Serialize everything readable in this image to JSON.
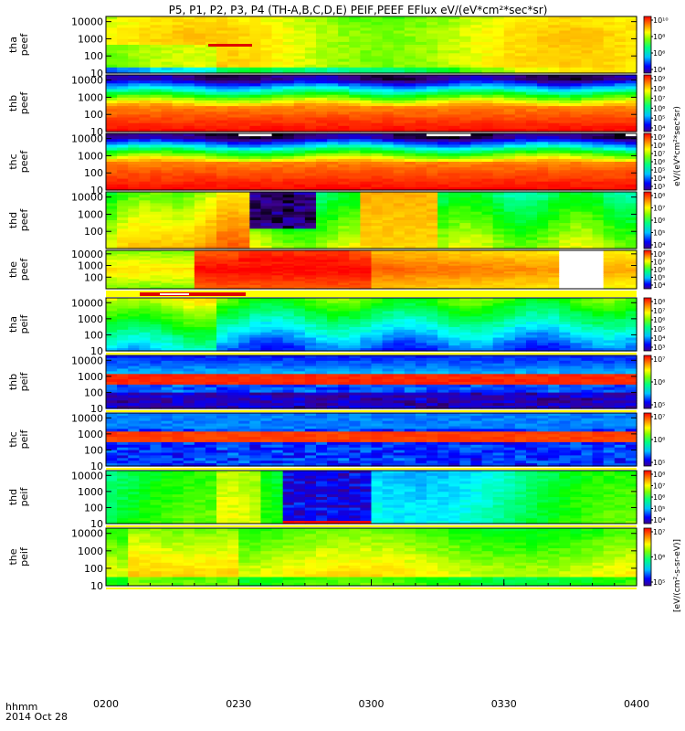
{
  "chart_data": {
    "type": "heatmap",
    "title": "P5, P1, P2, P3, P4 (TH-A,B,C,D,E) PEIF,PEEF EFlux eV/(eV*cm²*sec*sr)",
    "x_label_left": "hhmm",
    "date": "2014 Oct 28",
    "x_ticks": [
      "0200",
      "0230",
      "0300",
      "0330",
      "0400"
    ],
    "x_range": [
      "02:00",
      "04:00"
    ],
    "color_scale": "log, rainbow (purple-blue-green-yellow-red)",
    "colorbar_unit": "eV/(eV*cm²*sec*sr)",
    "colorbar_bottom_label": "[eV/(cm²-s-sr-eV)]",
    "panels": [
      {
        "label": [
          "tha",
          "peef"
        ],
        "y_ticks": [
          "10000",
          "1000",
          "100",
          "10"
        ],
        "ylim": [
          10,
          20000
        ],
        "cbar_ticks": [
          "10¹⁰",
          "10⁸",
          "10⁶",
          "10⁴"
        ]
      },
      {
        "label": [
          "thb",
          "peef"
        ],
        "y_ticks": [
          "10000",
          "1000",
          "100",
          "10"
        ],
        "ylim": [
          10,
          20000
        ],
        "cbar_ticks": [
          "10⁹",
          "10⁸",
          "10⁷",
          "10⁶",
          "10⁵",
          "10⁴"
        ]
      },
      {
        "label": [
          "thc",
          "peef"
        ],
        "y_ticks": [
          "10000",
          "1000",
          "100",
          "10"
        ],
        "ylim": [
          10,
          20000
        ],
        "cbar_ticks": [
          "10⁹",
          "10⁸",
          "10⁷",
          "10⁶",
          "10⁵",
          "10⁴",
          "10³"
        ]
      },
      {
        "label": [
          "thd",
          "peef"
        ],
        "y_ticks": [
          "10000",
          "1000",
          "100"
        ],
        "ylim": [
          10,
          20000
        ],
        "cbar_ticks": [
          "10⁸",
          "10⁷",
          "10⁶",
          "10⁵",
          "10⁴"
        ]
      },
      {
        "label": [
          "the",
          "peef"
        ],
        "y_ticks": [
          "10000",
          "1000",
          "100"
        ],
        "ylim": [
          10,
          20000
        ],
        "cbar_ticks": [
          "10⁸",
          "10⁷",
          "10⁶",
          "10⁵",
          "10⁴"
        ]
      },
      {
        "label": [
          "tha",
          "peif"
        ],
        "y_ticks": [
          "10000",
          "1000",
          "100",
          "10"
        ],
        "ylim": [
          10,
          20000
        ],
        "cbar_ticks": [
          "10⁸",
          "10⁷",
          "10⁶",
          "10⁵",
          "10⁴",
          "10³"
        ]
      },
      {
        "label": [
          "thb",
          "peif"
        ],
        "y_ticks": [
          "10000",
          "1000",
          "100",
          "10"
        ],
        "ylim": [
          10,
          20000
        ],
        "cbar_ticks": [
          "10⁷",
          "10⁶",
          "10⁵"
        ]
      },
      {
        "label": [
          "thc",
          "peif"
        ],
        "y_ticks": [
          "10000",
          "1000",
          "100",
          "10"
        ],
        "ylim": [
          10,
          20000
        ],
        "cbar_ticks": [
          "10⁷",
          "10⁶",
          "10⁵"
        ]
      },
      {
        "label": [
          "thd",
          "peif"
        ],
        "y_ticks": [
          "10000",
          "1000",
          "100",
          "10"
        ],
        "ylim": [
          10,
          20000
        ],
        "cbar_ticks": [
          "10⁸",
          "10⁷",
          "10⁶",
          "10⁵",
          "10⁴"
        ]
      },
      {
        "label": [
          "the",
          "peif"
        ],
        "y_ticks": [
          "10000",
          "1000",
          "100",
          "10"
        ],
        "ylim": [
          10,
          20000
        ],
        "cbar_ticks": [
          "10⁷",
          "10⁶",
          "10⁵"
        ]
      }
    ],
    "colors": {
      "palette": [
        "#000000",
        "#3c008c",
        "#0000ff",
        "#0080ff",
        "#00ffff",
        "#00ff80",
        "#00ff00",
        "#80ff00",
        "#ffff00",
        "#ffc000",
        "#ff8000",
        "#ff4000",
        "#ff0000"
      ],
      "flag_red": "#e00000",
      "separator": "#ffff00"
    }
  }
}
